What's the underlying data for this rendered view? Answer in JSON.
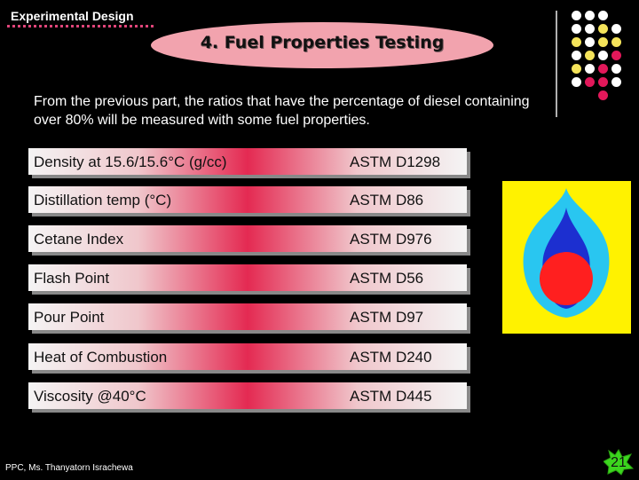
{
  "header": {
    "section": "Experimental Design",
    "title": "4. Fuel Properties Testing"
  },
  "intro": "From the previous part, the ratios that have the percentage of diesel containing over 80% will be measured with some fuel properties.",
  "properties": [
    {
      "name": "Density at 15.6/15.6°C (g/cc)",
      "standard": "ASTM D1298"
    },
    {
      "name": "Distillation temp (°C)",
      "standard": "ASTM D86"
    },
    {
      "name": "Cetane Index",
      "standard": "ASTM D976"
    },
    {
      "name": "Flash Point",
      "standard": "ASTM D56"
    },
    {
      "name": "Pour Point",
      "standard": "ASTM D97"
    },
    {
      "name": "Heat of Combustion",
      "standard": "ASTM D240"
    },
    {
      "name": "Viscosity @40°C",
      "standard": "ASTM D445"
    }
  ],
  "footer": "PPC, Ms. Thanyatorn Israchewa",
  "page_number": "21",
  "colors": {
    "accent": "#e0457a",
    "row_center": "#e42a52",
    "logo_bg": "#fff200",
    "logo_outer": "#29c6f0",
    "logo_inner": "#1c2fd0",
    "logo_core": "#ff1f1f",
    "page_badge": "#3cd61e"
  },
  "icons": {
    "logo": "ptt-flame-logo-icon",
    "decoration": "dot-grid-icon",
    "page": "star-badge-icon"
  }
}
